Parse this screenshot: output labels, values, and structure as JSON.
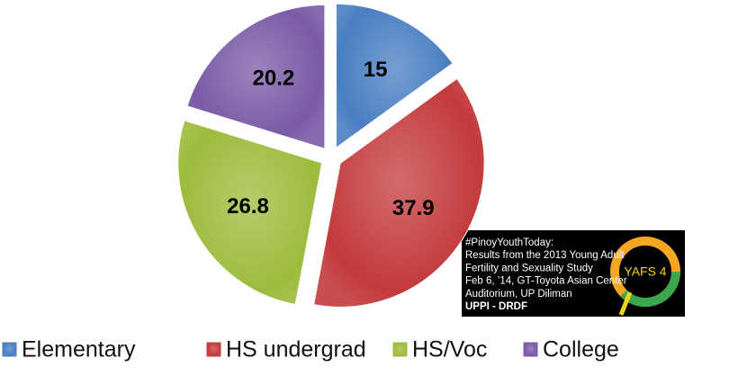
{
  "chart_data": {
    "type": "pie",
    "categories": [
      "Elementary",
      "HS undergrad",
      "HS/Voc",
      "College"
    ],
    "values": [
      15,
      37.9,
      26.8,
      20.2
    ],
    "colors": [
      "#4a7ec2",
      "#c33a3c",
      "#9cbc3c",
      "#7a5aa6"
    ],
    "legend": "bottom",
    "note_lines": [
      "#PinoyYouthToday:",
      "Results from the 2013 Young Adult",
      "Fertility and Sexuality Study",
      "Feb 6, ’14, GT-Toyota Asian Center",
      "Auditorium, UP Diliman",
      "UPPI - DRDF"
    ],
    "logo_text": "YAFS 4"
  }
}
